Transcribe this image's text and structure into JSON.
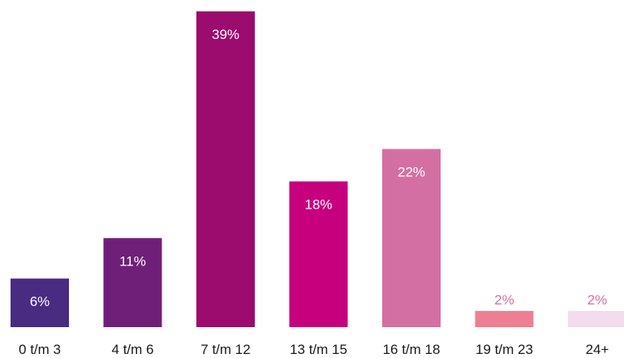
{
  "chart_data": {
    "type": "bar",
    "title": "",
    "xlabel": "",
    "ylabel": "",
    "categories": [
      "0 t/m 3",
      "4 t/m 6",
      "7 t/m 12",
      "13 t/m 15",
      "16 t/m 18",
      "19 t/m 23",
      "24+"
    ],
    "values": [
      6,
      11,
      39,
      18,
      22,
      2,
      2
    ],
    "value_labels": [
      "6%",
      "11%",
      "39%",
      "18%",
      "22%",
      "2%",
      "2%"
    ],
    "bar_colors": [
      "#4a2b82",
      "#6f1f78",
      "#9c0b6e",
      "#c7007d",
      "#d46fa3",
      "#ee7f93",
      "#f3dcec"
    ],
    "label_colors": [
      "#ffffff",
      "#ffffff",
      "#ffffff",
      "#ffffff",
      "#ffffff",
      "#d46fa3",
      "#d46fa3"
    ],
    "ylim": [
      0,
      39
    ],
    "grid": false,
    "legend": "none"
  }
}
